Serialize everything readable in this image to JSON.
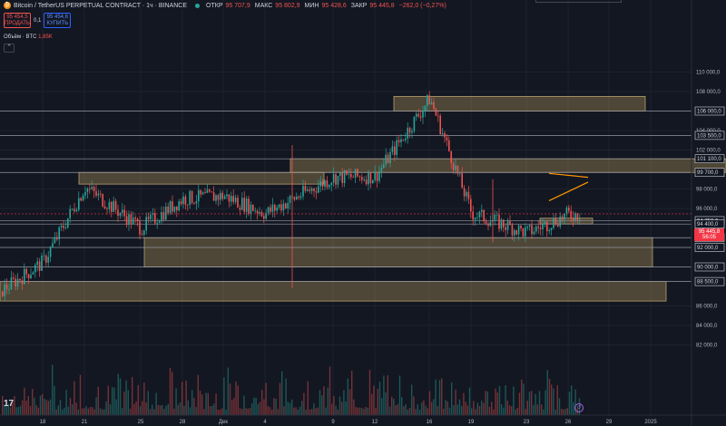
{
  "header": {
    "title": "Bitcoin / TetherUS PERPETUAL CONTRACT · 1ч · BINANCE",
    "open_label": "ОТКР",
    "open_value": "95 707,9",
    "high_label": "МАКС",
    "high_value": "95 802,9",
    "low_label": "МИН",
    "low_value": "95 428,6",
    "close_label": "ЗАКР",
    "close_value": "95 445,8",
    "change": "−262,0 (−0,27%)"
  },
  "trade": {
    "sell_price": "95 454,5",
    "sell_label": "ПРОДАТЬ",
    "spread": "0,1",
    "buy_price": "95 454,6",
    "buy_label": "КУПИТЬ"
  },
  "volume": {
    "label": "Объём · BTC",
    "value": "1,85K"
  },
  "collapse_icon": "chevron-up-icon",
  "current_price": {
    "value": "95 445,8",
    "countdown": "56:05",
    "color": "#f23645"
  },
  "colors": {
    "up": "#26a69a",
    "down": "#ef5350",
    "zone": "#e8c36a",
    "trend": "#ff9800"
  },
  "chart_data": {
    "type": "line",
    "title": "Bitcoin / TetherUS PERPETUAL CONTRACT · 1ч · BINANCE",
    "ylim": [
      81000,
      112000
    ],
    "y_ticks": [
      "110 000,0",
      "108 000,0",
      "106 000,0",
      "104 000,0",
      "102 000,0",
      "98 000,0",
      "96 000,0",
      "86 000,0",
      "84 000,0",
      "82 000,0"
    ],
    "x_ticks": [
      "18",
      "21",
      "25",
      "28",
      "Дек",
      "4",
      "9",
      "12",
      "16",
      "19",
      "23",
      "26",
      "29",
      "2025"
    ],
    "horizontal_levels": [
      "106 000,0",
      "103 500,0",
      "101 100,0",
      "99 700,0",
      "94 750,0",
      "94 400,0",
      "93 000,0",
      "92 000,0",
      "90 000,0",
      "88 500,0"
    ],
    "zones": [
      {
        "low": 106000,
        "high": 107500
      },
      {
        "low": 99700,
        "high": 101100
      },
      {
        "low": 98500,
        "high": 99700
      },
      {
        "low": 94400,
        "high": 95000
      },
      {
        "low": 90000,
        "high": 93000
      },
      {
        "low": 86500,
        "high": 88500
      }
    ],
    "series": [
      {
        "x": [
          "18",
          "21",
          "25",
          "28",
          "Дек",
          "4",
          "9",
          "12",
          "16",
          "19",
          "23",
          "26"
        ],
        "values": [
          90500,
          98200,
          94000,
          97000,
          97300,
          95500,
          99200,
          99300,
          107300,
          95500,
          93500,
          95400
        ]
      }
    ],
    "grid": true
  }
}
